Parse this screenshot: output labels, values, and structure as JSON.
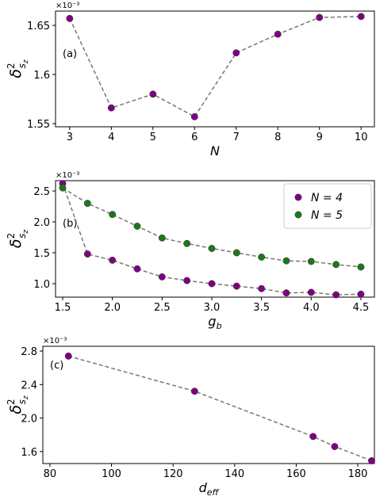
{
  "chart_data": [
    {
      "type": "line",
      "annotation": "(a)",
      "y_offset_text": "×10⁻³",
      "xlabel": "N",
      "xlabel_subscript": null,
      "ylabel": "δ",
      "ylabel_superscript": "2",
      "ylabel_subscript": "s",
      "ylabel_subscript2": "z",
      "x": [
        3,
        4,
        5,
        6,
        7,
        8,
        9,
        10
      ],
      "values": [
        1.657,
        1.566,
        1.58,
        1.557,
        1.622,
        1.641,
        1.658,
        1.659
      ],
      "color": "#800080",
      "xlim": [
        2.66,
        10.32
      ],
      "xticks": [
        3,
        4,
        5,
        6,
        7,
        8,
        9,
        10
      ],
      "ylim": [
        1.5468,
        1.6645
      ],
      "yticks": [
        1.55,
        1.6,
        1.65
      ]
    },
    {
      "type": "line",
      "annotation": "(b)",
      "y_offset_text": "×10⁻³",
      "xlabel": "g",
      "xlabel_subscript": "b",
      "ylabel": "δ",
      "ylabel_superscript": "2",
      "ylabel_subscript": "s",
      "ylabel_subscript2": "z",
      "x": [
        1.5,
        1.75,
        2.0,
        2.25,
        2.5,
        2.75,
        3.0,
        3.25,
        3.5,
        3.75,
        4.0,
        4.25,
        4.5
      ],
      "series": [
        {
          "name": "N = 4",
          "color": "#800080",
          "values": [
            2.62,
            1.48,
            1.38,
            1.24,
            1.11,
            1.05,
            1.0,
            0.96,
            0.92,
            0.85,
            0.86,
            0.82,
            0.83
          ]
        },
        {
          "name": "N = 5",
          "color": "#1a7a1a",
          "values": [
            2.55,
            2.3,
            2.12,
            1.93,
            1.74,
            1.65,
            1.57,
            1.5,
            1.43,
            1.37,
            1.36,
            1.31,
            1.27
          ]
        }
      ],
      "legend": "upper right",
      "xlim": [
        1.428,
        4.636
      ],
      "xticks": [
        1.5,
        {
          "value": 2,
          "label": "2.0"
        },
        2.5,
        {
          "value": 3,
          "label": "3.0"
        },
        3.5,
        {
          "value": 4,
          "label": "4.0"
        },
        4.5
      ],
      "ylim": [
        0.782,
        2.667
      ],
      "yticks": [
        {
          "value": 1,
          "label": "1.0"
        },
        1.5,
        {
          "value": 2,
          "label": "2.0"
        },
        2.5
      ]
    },
    {
      "type": "line",
      "annotation": "(c)",
      "y_offset_text": "×10⁻³",
      "xlabel": "d",
      "xlabel_subscript": "eff",
      "ylabel": "δ",
      "ylabel_superscript": "2",
      "ylabel_subscript": "s",
      "ylabel_subscript2": "z",
      "x": [
        86,
        127,
        165.5,
        172.5,
        184.5
      ],
      "values": [
        2.74,
        2.32,
        1.78,
        1.66,
        1.49
      ],
      "color": "#800080",
      "xlim": [
        77.7,
        185.4
      ],
      "xticks": [
        80,
        100,
        120,
        140,
        160,
        180
      ],
      "ylim": [
        1.457,
        2.857
      ],
      "yticks": [
        1.6,
        {
          "value": 2,
          "label": "2.0"
        },
        2.4,
        2.8
      ]
    }
  ]
}
